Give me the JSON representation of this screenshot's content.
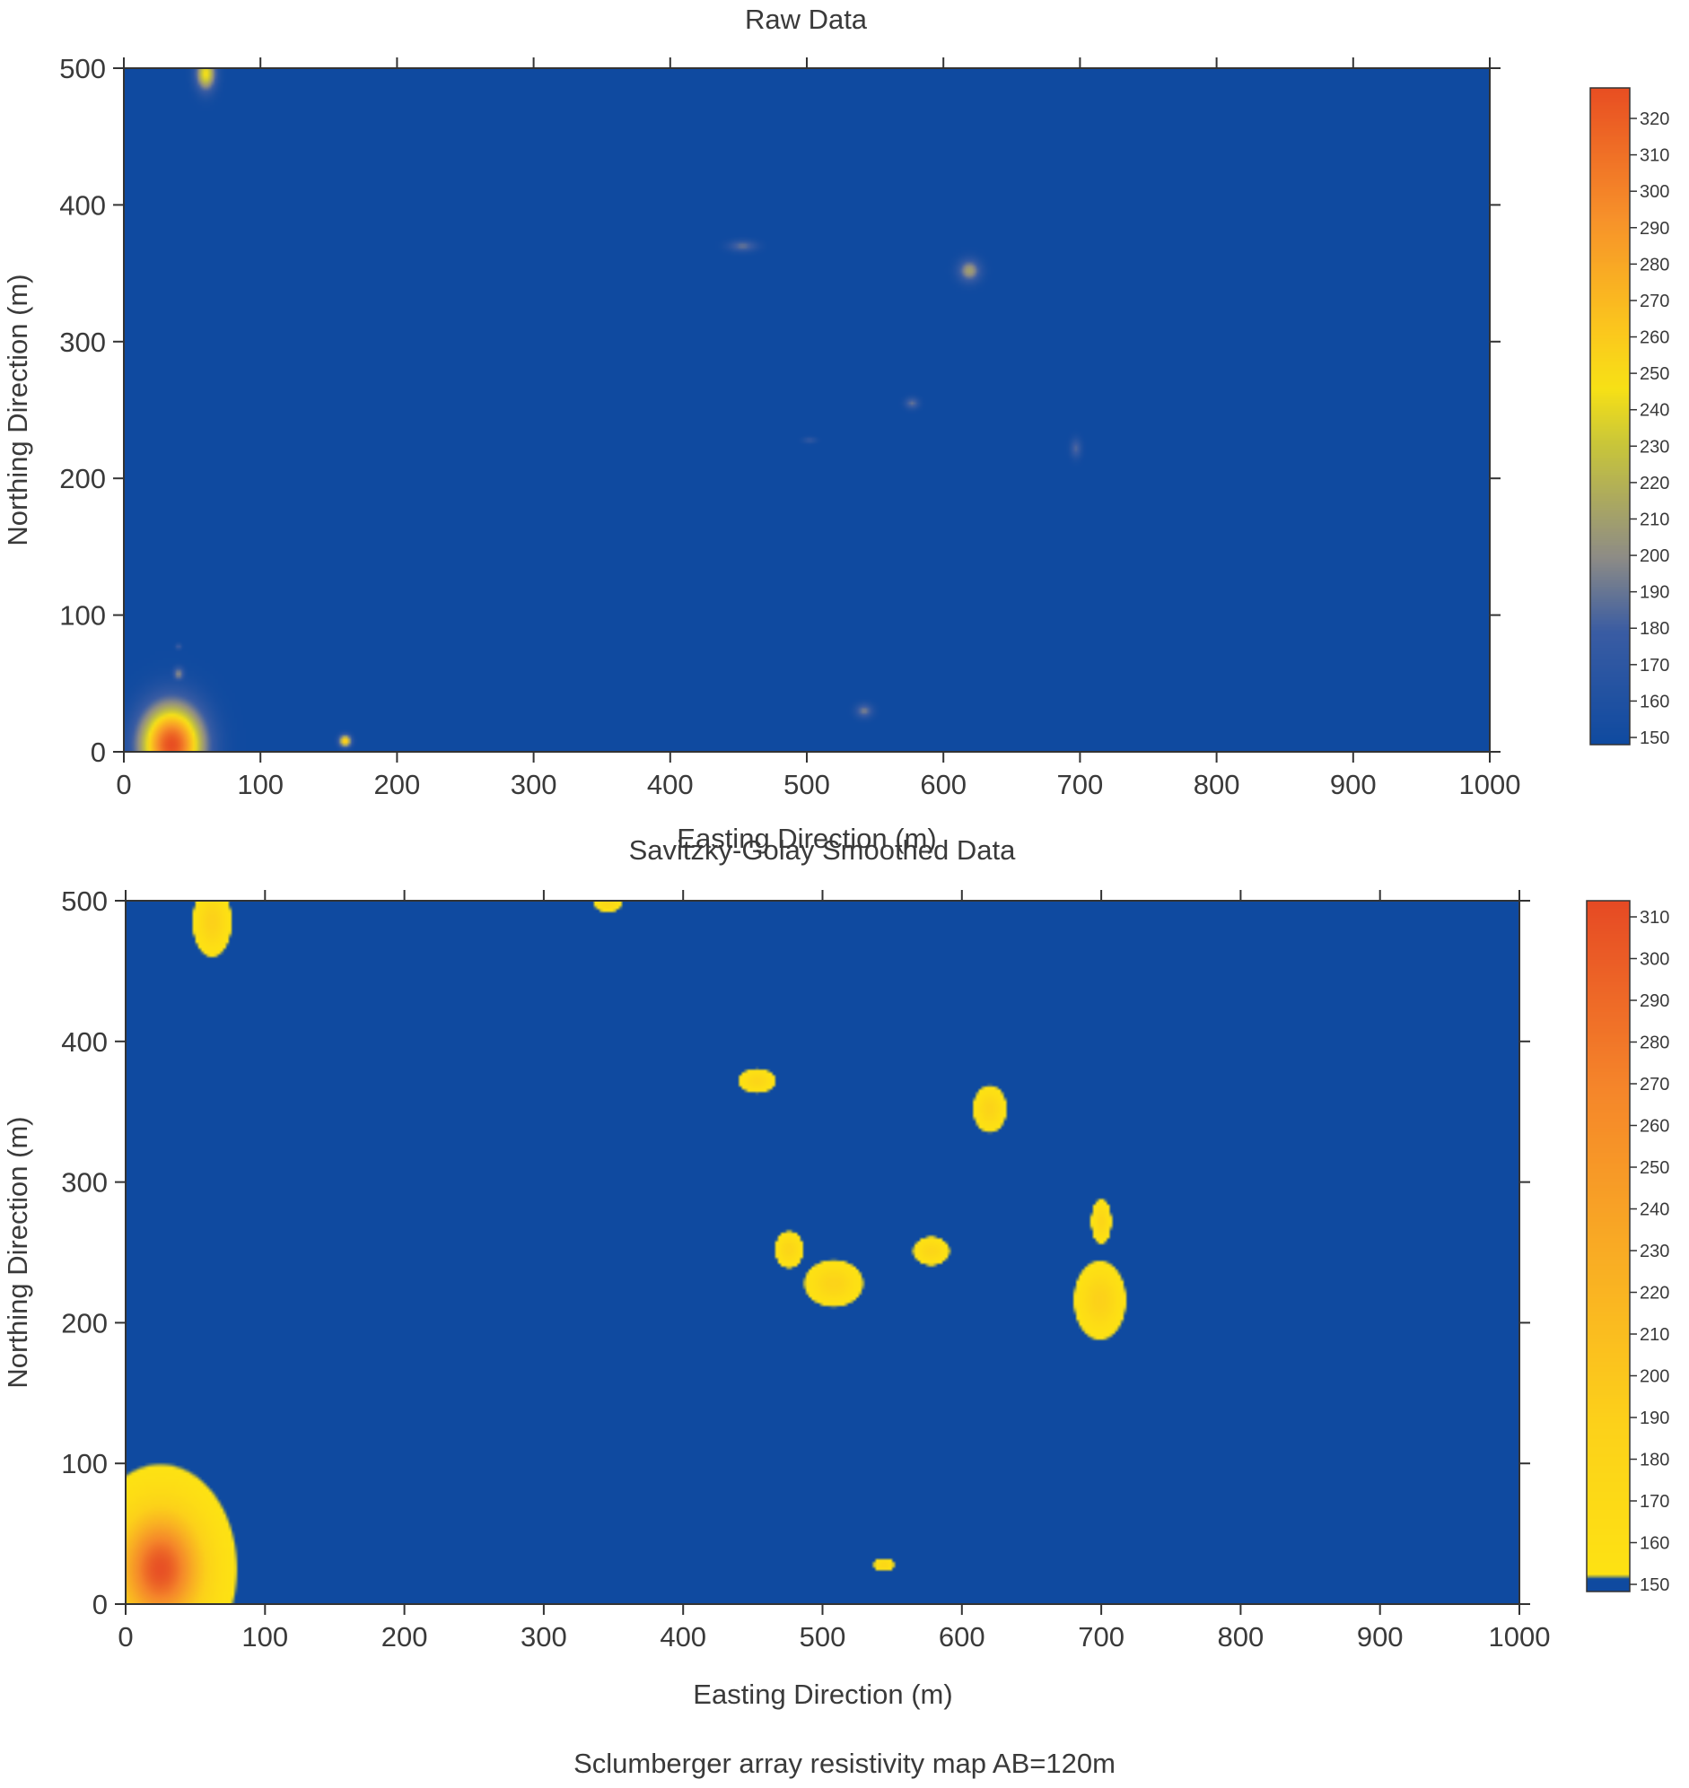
{
  "caption": "Sclumberger array resistivity map AB=120m",
  "chart_data": [
    {
      "type": "heatmap",
      "title": "Raw Data",
      "xlabel": "Easting Direction (m)",
      "ylabel": "Northing Direction (m)",
      "xlim": [
        0,
        1000
      ],
      "ylim": [
        0,
        500
      ],
      "xticks": [
        "0",
        "100",
        "200",
        "300",
        "400",
        "500",
        "600",
        "700",
        "800",
        "900",
        "1000"
      ],
      "yticks": [
        "0",
        "100",
        "200",
        "300",
        "400",
        "500"
      ],
      "colorbar": {
        "min": 1500,
        "max": 3250,
        "ticks": [
          "150",
          "160",
          "170",
          "180",
          "190",
          "200",
          "210",
          "220",
          "230",
          "240",
          "250",
          "260",
          "270",
          "280",
          "290",
          "300",
          "310",
          "320"
        ],
        "stops": [
          {
            "v": 1500,
            "c": "#0f4aa0"
          },
          {
            "v": 1800,
            "c": "#3a5ca3"
          },
          {
            "v": 2000,
            "c": "#8e8c86"
          },
          {
            "v": 2300,
            "c": "#c9c63a"
          },
          {
            "v": 2450,
            "c": "#f7e116"
          },
          {
            "v": 2600,
            "c": "#fbc81d"
          },
          {
            "v": 2900,
            "c": "#f7922a"
          },
          {
            "v": 3250,
            "c": "#e84e22"
          }
        ]
      },
      "background_value": 1500,
      "anomalies": [
        {
          "x": 35,
          "y": 5,
          "rx": 22,
          "ry": 28,
          "peak": 3250
        },
        {
          "x": 60,
          "y": 496,
          "rx": 7,
          "ry": 12,
          "peak": 2450
        },
        {
          "x": 40,
          "y": 57,
          "rx": 4,
          "ry": 5,
          "peak": 2000
        },
        {
          "x": 40,
          "y": 77,
          "rx": 2,
          "ry": 2,
          "peak": 1850
        },
        {
          "x": 162,
          "y": 8,
          "rx": 4,
          "ry": 4,
          "peak": 2700
        },
        {
          "x": 453,
          "y": 370,
          "rx": 10,
          "ry": 4,
          "peak": 1900
        },
        {
          "x": 619,
          "y": 352,
          "rx": 8,
          "ry": 8,
          "peak": 2100
        },
        {
          "x": 577,
          "y": 255,
          "rx": 5,
          "ry": 4,
          "peak": 1900
        },
        {
          "x": 502,
          "y": 228,
          "rx": 5,
          "ry": 2,
          "peak": 1750
        },
        {
          "x": 697,
          "y": 222,
          "rx": 4,
          "ry": 7,
          "peak": 1850
        },
        {
          "x": 542,
          "y": 30,
          "rx": 6,
          "ry": 5,
          "peak": 1950
        }
      ]
    },
    {
      "type": "heatmap",
      "title": "Savitzky-Golay Smoothed Data",
      "xlabel": "Easting Direction (m)",
      "ylabel": "Northing Direction (m)",
      "xlim": [
        0,
        1000
      ],
      "ylim": [
        0,
        500
      ],
      "xticks": [
        "0",
        "100",
        "200",
        "300",
        "400",
        "500",
        "600",
        "700",
        "800",
        "900",
        "1000"
      ],
      "yticks": [
        "0",
        "100",
        "200",
        "300",
        "400",
        "500"
      ],
      "colorbar": {
        "min": 1500,
        "max": 3150,
        "ticks": [
          "150",
          "160",
          "170",
          "180",
          "190",
          "200",
          "210",
          "220",
          "230",
          "240",
          "250",
          "260",
          "270",
          "280",
          "290",
          "300",
          "310"
        ],
        "stops": [
          {
            "v": 1500,
            "c": "#0f4aa0"
          },
          {
            "v": 1530,
            "c": "#0f4aa0"
          },
          {
            "v": 1540,
            "c": "#fde213"
          },
          {
            "v": 1900,
            "c": "#fcd11a"
          },
          {
            "v": 2300,
            "c": "#f9ad24"
          },
          {
            "v": 2700,
            "c": "#f5862a"
          },
          {
            "v": 3150,
            "c": "#e64a24"
          }
        ]
      },
      "background_value": 1500,
      "anomalies": [
        {
          "x": 25,
          "y": 25,
          "rx": 28,
          "ry": 38,
          "peak": 3100
        },
        {
          "x": 62,
          "y": 485,
          "rx": 9,
          "ry": 16,
          "peak": 1900
        },
        {
          "x": 346,
          "y": 498,
          "rx": 7,
          "ry": 4,
          "peak": 1800
        },
        {
          "x": 453,
          "y": 372,
          "rx": 9,
          "ry": 6,
          "peak": 1800
        },
        {
          "x": 620,
          "y": 352,
          "rx": 8,
          "ry": 11,
          "peak": 1850
        },
        {
          "x": 476,
          "y": 252,
          "rx": 7,
          "ry": 9,
          "peak": 1800
        },
        {
          "x": 508,
          "y": 228,
          "rx": 14,
          "ry": 11,
          "peak": 1850
        },
        {
          "x": 578,
          "y": 251,
          "rx": 9,
          "ry": 7,
          "peak": 1800
        },
        {
          "x": 700,
          "y": 272,
          "rx": 5,
          "ry": 11,
          "peak": 1800
        },
        {
          "x": 699,
          "y": 216,
          "rx": 12,
          "ry": 18,
          "peak": 1900
        },
        {
          "x": 544,
          "y": 28,
          "rx": 5,
          "ry": 3,
          "peak": 1800
        }
      ]
    }
  ]
}
